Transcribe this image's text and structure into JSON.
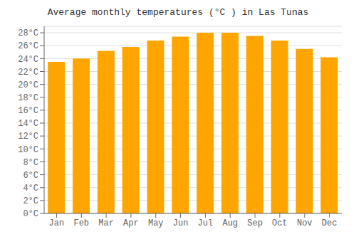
{
  "chart_data": {
    "type": "bar",
    "title": "Average monthly temperatures (°C ) in Las Tunas",
    "categories": [
      "Jan",
      "Feb",
      "Mar",
      "Apr",
      "May",
      "Jun",
      "Jul",
      "Aug",
      "Sep",
      "Oct",
      "Nov",
      "Dec"
    ],
    "values": [
      23.5,
      24.0,
      25.2,
      25.8,
      26.8,
      27.4,
      28.0,
      28.0,
      27.5,
      26.8,
      25.5,
      24.2
    ],
    "color": "#FFA500",
    "ylim": [
      0,
      29
    ],
    "yticks": [
      {
        "value": 0,
        "label": "0°C"
      },
      {
        "value": 2,
        "label": "2°C"
      },
      {
        "value": 4,
        "label": "4°C"
      },
      {
        "value": 6,
        "label": "6°C"
      },
      {
        "value": 8,
        "label": "8°C"
      },
      {
        "value": 10,
        "label": "10°C"
      },
      {
        "value": 12,
        "label": "12°C"
      },
      {
        "value": 14,
        "label": "14°C"
      },
      {
        "value": 16,
        "label": "16°C"
      },
      {
        "value": 18,
        "label": "18°C"
      },
      {
        "value": 20,
        "label": "20°C"
      },
      {
        "value": 22,
        "label": "22°C"
      },
      {
        "value": 24,
        "label": "24°C"
      },
      {
        "value": 26,
        "label": "26°C"
      },
      {
        "value": 28,
        "label": "28°C"
      }
    ],
    "grid": true
  }
}
